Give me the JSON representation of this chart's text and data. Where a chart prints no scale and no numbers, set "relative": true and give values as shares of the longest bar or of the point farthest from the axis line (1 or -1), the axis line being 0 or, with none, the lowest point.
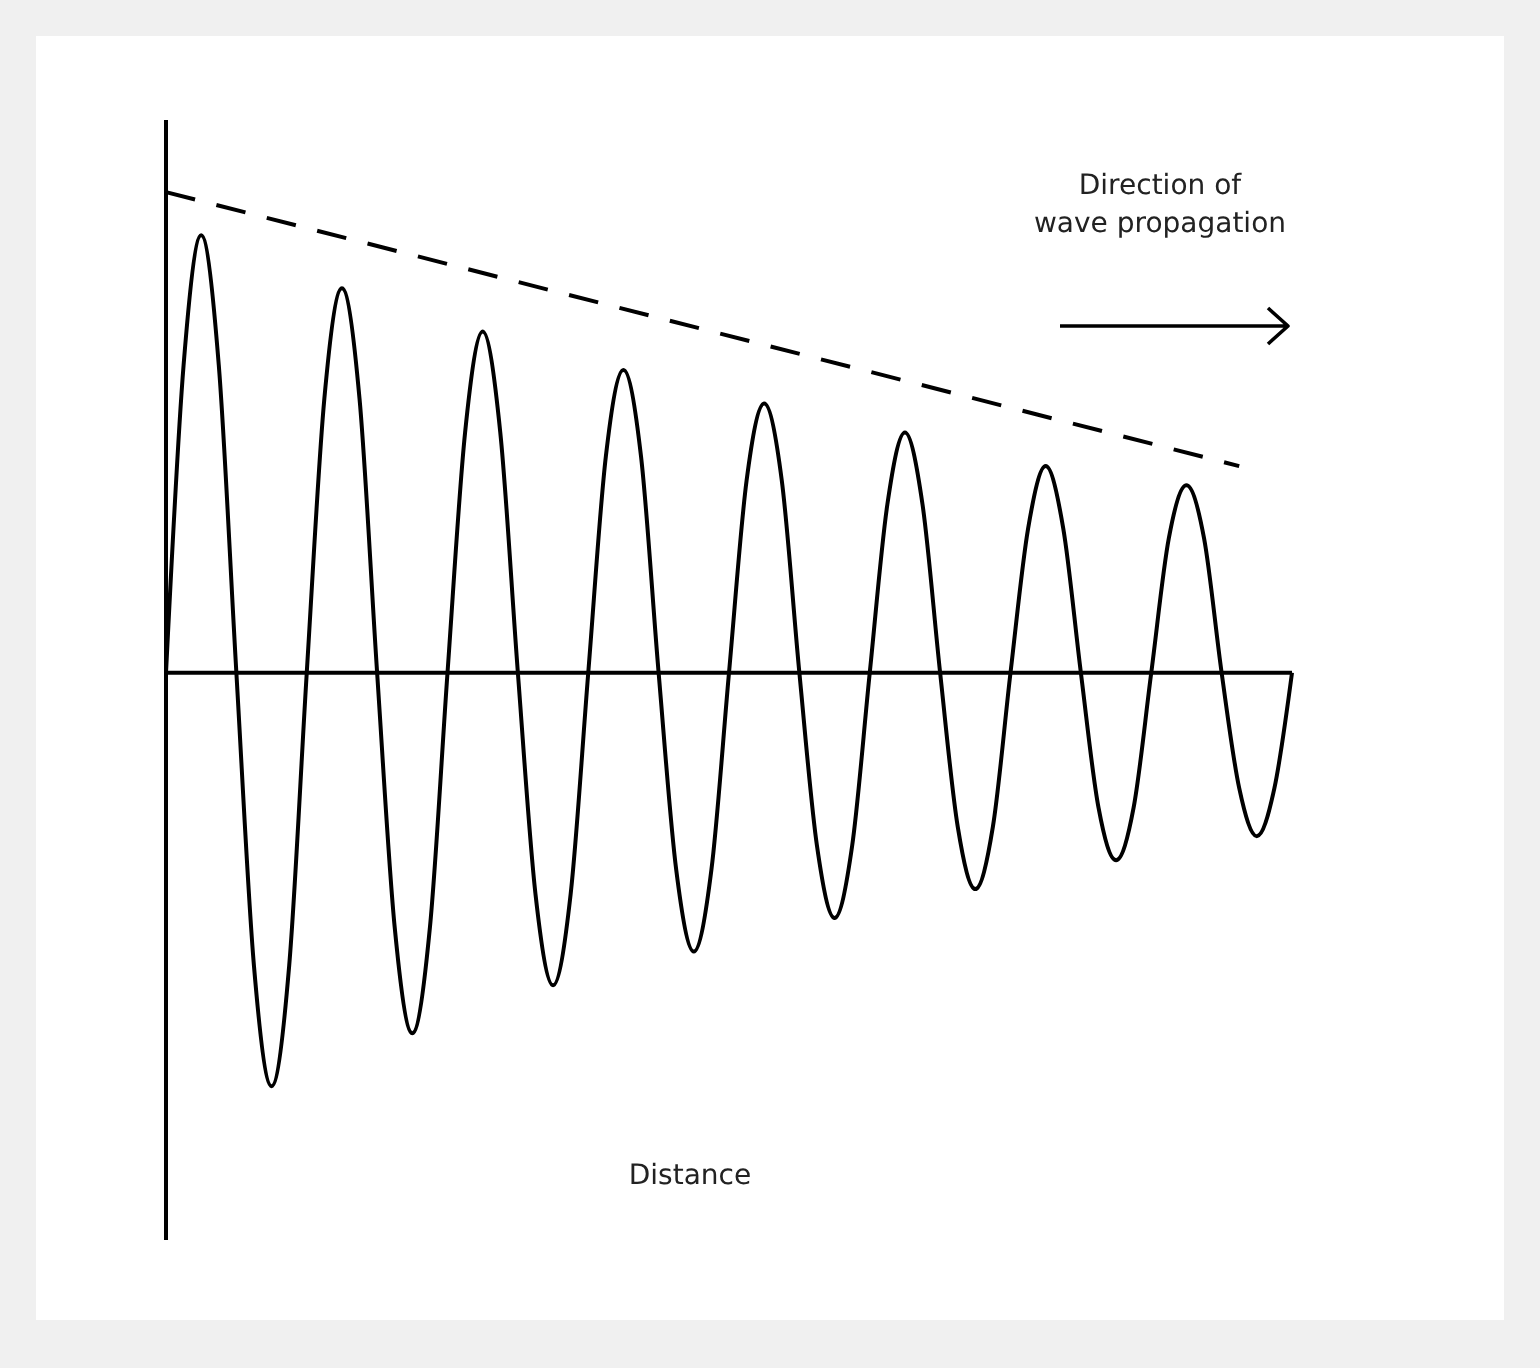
{
  "chart_data": {
    "type": "line",
    "relative": true,
    "xlabel": "Distance",
    "annotations": [
      "Direction of wave propagation"
    ],
    "categories": [
      null,
      null,
      null,
      null,
      null,
      null,
      null,
      null,
      null,
      null,
      null,
      null,
      null,
      null,
      null,
      null,
      null,
      null,
      null,
      null,
      null,
      null,
      null,
      null,
      null,
      null,
      null,
      null,
      null,
      null,
      null,
      null,
      null,
      null,
      null,
      null,
      null,
      null,
      null,
      null,
      null,
      null,
      null,
      null,
      null,
      null,
      null,
      null,
      null,
      null,
      null,
      null,
      null,
      null,
      null,
      null,
      null,
      null,
      null,
      null,
      null,
      null,
      null,
      null,
      null
    ],
    "series": [
      {
        "color": "#000000",
        "line_style": "solid",
        "values": [
          0,
          0.64,
          0.91,
          0.64,
          0,
          -0.61,
          -0.86,
          -0.61,
          0,
          0.57,
          0.8,
          0.57,
          0,
          -0.53,
          -0.75,
          -0.53,
          0,
          0.5,
          0.71,
          0.5,
          0,
          -0.46,
          -0.65,
          -0.46,
          0,
          0.45,
          0.63,
          0.45,
          0,
          -0.41,
          -0.58,
          -0.41,
          0,
          0.4,
          0.56,
          0.4,
          0,
          -0.36,
          -0.51,
          -0.36,
          0,
          0.35,
          0.5,
          0.35,
          0,
          -0.32,
          -0.45,
          -0.32,
          0,
          0.3,
          0.43,
          0.3,
          0,
          -0.28,
          -0.39,
          -0.28,
          0,
          0.28,
          0.39,
          0.28,
          0,
          -0.24,
          -0.34,
          -0.24,
          0
        ]
      },
      {
        "color": "#000000",
        "line_style": "dashed",
        "values": [
          1,
          null,
          null,
          null,
          null,
          null,
          null,
          null,
          null,
          null,
          null,
          null,
          null,
          null,
          null,
          null,
          null,
          null,
          null,
          null,
          null,
          null,
          null,
          null,
          null,
          null,
          null,
          null,
          null,
          null,
          null,
          null,
          null,
          null,
          null,
          null,
          null,
          null,
          null,
          null,
          null,
          null,
          null,
          null,
          null,
          null,
          null,
          null,
          null,
          null,
          null,
          null,
          null,
          null,
          null,
          null,
          null,
          null,
          null,
          null,
          null,
          0.43,
          null,
          null,
          null
        ]
      }
    ],
    "marker": "none"
  }
}
